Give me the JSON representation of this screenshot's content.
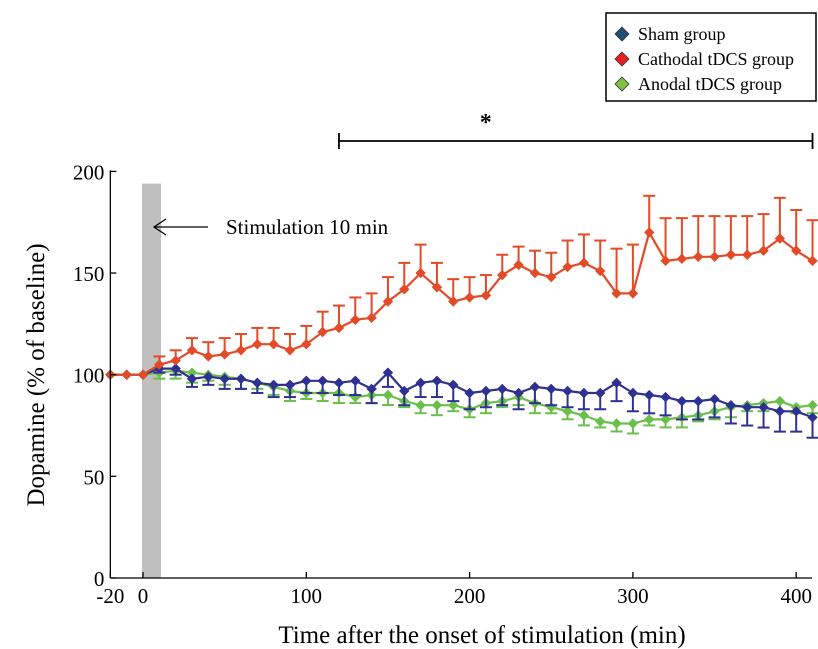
{
  "chart_data": {
    "type": "line",
    "xlabel": "Time after the onset of stimulation (min)",
    "ylabel": "Dopamine (% of baseline)",
    "xlim": [
      -20,
      410
    ],
    "ylim": [
      0,
      200
    ],
    "x_ticks": [
      -20,
      0,
      100,
      200,
      300,
      400
    ],
    "x_tick_labels": [
      "-20",
      "0",
      "100",
      "200",
      "300",
      "400"
    ],
    "y_ticks": [
      0,
      50,
      100,
      150,
      200
    ],
    "y_tick_labels": [
      "0",
      "50",
      "100",
      "150",
      "200"
    ],
    "legend_position": "top-right",
    "stimulation": {
      "start": 0,
      "end": 10,
      "label": "Stimulation 10 min",
      "color": "#bfbfbf"
    },
    "significance": {
      "start": 120,
      "end": 410,
      "y": 213,
      "symbol": "*"
    },
    "x": [
      -20,
      -10,
      0,
      10,
      20,
      30,
      40,
      50,
      60,
      70,
      80,
      90,
      100,
      110,
      120,
      130,
      140,
      150,
      160,
      170,
      180,
      190,
      200,
      210,
      220,
      230,
      240,
      250,
      260,
      270,
      280,
      290,
      300,
      310,
      320,
      330,
      340,
      350,
      360,
      370,
      380,
      390,
      400,
      410
    ],
    "series": [
      {
        "name": "Sham group",
        "color": "#2e3192",
        "marker_color": "#1f4e79",
        "values": [
          100,
          100,
          100,
          103,
          103,
          98,
          99,
          98,
          98,
          96,
          95,
          95,
          97,
          97,
          96,
          97,
          93,
          101,
          92,
          96,
          97,
          95,
          91,
          92,
          93,
          91,
          94,
          93,
          92,
          91,
          91,
          96,
          91,
          90,
          89,
          87,
          87,
          88,
          85,
          84,
          84,
          82,
          82,
          79
        ],
        "errors": [
          0,
          0,
          0,
          2,
          3,
          4,
          4,
          5,
          5,
          5,
          6,
          6,
          6,
          6,
          6,
          7,
          7,
          7,
          7,
          7,
          8,
          8,
          8,
          8,
          8,
          8,
          8,
          8,
          8,
          8,
          8,
          9,
          9,
          9,
          9,
          9,
          9,
          9,
          9,
          9,
          10,
          10,
          10,
          10
        ]
      },
      {
        "name": "Cathodal tDCS group",
        "color": "#e34a27",
        "marker_color": "#e8201e",
        "values": [
          100,
          100,
          100,
          105,
          107,
          112,
          109,
          110,
          112,
          115,
          115,
          112,
          115,
          121,
          123,
          127,
          128,
          136,
          142,
          150,
          143,
          136,
          138,
          139,
          149,
          154,
          150,
          148,
          153,
          155,
          151,
          140,
          140,
          170,
          156,
          157,
          158,
          158,
          159,
          159,
          161,
          167,
          161,
          156
        ],
        "errors": [
          0,
          0,
          0,
          4,
          5,
          6,
          7,
          8,
          8,
          8,
          8,
          8,
          9,
          10,
          11,
          11,
          12,
          12,
          13,
          14,
          12,
          11,
          10,
          10,
          10,
          9,
          11,
          12,
          13,
          14,
          15,
          22,
          24,
          18,
          21,
          20,
          20,
          20,
          19,
          19,
          18,
          20,
          20,
          20
        ]
      },
      {
        "name": "Anodal tDCS group",
        "color": "#6abf4b",
        "marker_color": "#7dc242",
        "values": [
          100,
          100,
          100,
          101,
          102,
          101,
          100,
          99,
          98,
          96,
          94,
          92,
          91,
          91,
          91,
          89,
          90,
          90,
          87,
          85,
          85,
          85,
          83,
          86,
          87,
          89,
          86,
          84,
          82,
          80,
          77,
          76,
          76,
          78,
          78,
          79,
          80,
          82,
          84,
          85,
          86,
          87,
          84,
          85
        ]
      }
    ]
  }
}
